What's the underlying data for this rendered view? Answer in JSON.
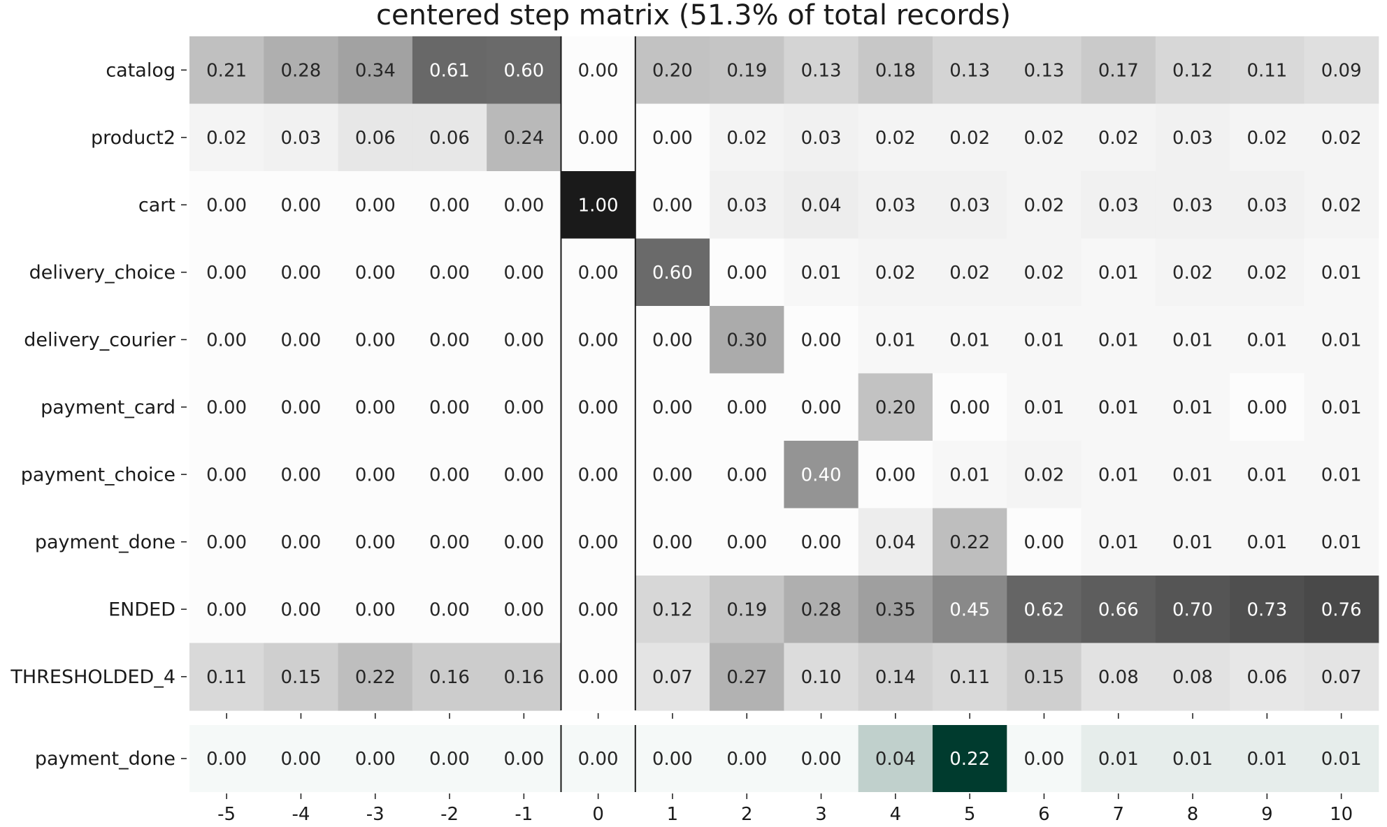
{
  "chart_data": {
    "type": "heatmap",
    "title": "centered step matrix (51.3% of total records)",
    "x_ticks": [
      "-5",
      "-4",
      "-3",
      "-2",
      "-1",
      "0",
      "1",
      "2",
      "3",
      "4",
      "5",
      "6",
      "7",
      "8",
      "9",
      "10"
    ],
    "rows": [
      "catalog",
      "product2",
      "cart",
      "delivery_choice",
      "delivery_courier",
      "payment_card",
      "payment_choice",
      "payment_done",
      "ENDED",
      "THRESHOLDED_4"
    ],
    "values": [
      [
        "0.21",
        "0.28",
        "0.34",
        "0.61",
        "0.60",
        "0.00",
        "0.20",
        "0.19",
        "0.13",
        "0.18",
        "0.13",
        "0.13",
        "0.17",
        "0.12",
        "0.11",
        "0.09"
      ],
      [
        "0.02",
        "0.03",
        "0.06",
        "0.06",
        "0.24",
        "0.00",
        "0.00",
        "0.02",
        "0.03",
        "0.02",
        "0.02",
        "0.02",
        "0.02",
        "0.03",
        "0.02",
        "0.02"
      ],
      [
        "0.00",
        "0.00",
        "0.00",
        "0.00",
        "0.00",
        "1.00",
        "0.00",
        "0.03",
        "0.04",
        "0.03",
        "0.03",
        "0.02",
        "0.03",
        "0.03",
        "0.03",
        "0.02"
      ],
      [
        "0.00",
        "0.00",
        "0.00",
        "0.00",
        "0.00",
        "0.00",
        "0.60",
        "0.00",
        "0.01",
        "0.02",
        "0.02",
        "0.02",
        "0.01",
        "0.02",
        "0.02",
        "0.01"
      ],
      [
        "0.00",
        "0.00",
        "0.00",
        "0.00",
        "0.00",
        "0.00",
        "0.00",
        "0.30",
        "0.00",
        "0.01",
        "0.01",
        "0.01",
        "0.01",
        "0.01",
        "0.01",
        "0.01"
      ],
      [
        "0.00",
        "0.00",
        "0.00",
        "0.00",
        "0.00",
        "0.00",
        "0.00",
        "0.00",
        "0.00",
        "0.20",
        "0.00",
        "0.01",
        "0.01",
        "0.01",
        "0.00",
        "0.01"
      ],
      [
        "0.00",
        "0.00",
        "0.00",
        "0.00",
        "0.00",
        "0.00",
        "0.00",
        "0.00",
        "0.40",
        "0.00",
        "0.01",
        "0.02",
        "0.01",
        "0.01",
        "0.01",
        "0.01"
      ],
      [
        "0.00",
        "0.00",
        "0.00",
        "0.00",
        "0.00",
        "0.00",
        "0.00",
        "0.00",
        "0.00",
        "0.04",
        "0.22",
        "0.00",
        "0.01",
        "0.01",
        "0.01",
        "0.01"
      ],
      [
        "0.00",
        "0.00",
        "0.00",
        "0.00",
        "0.00",
        "0.00",
        "0.12",
        "0.19",
        "0.28",
        "0.35",
        "0.45",
        "0.62",
        "0.66",
        "0.70",
        "0.73",
        "0.76"
      ],
      [
        "0.11",
        "0.15",
        "0.22",
        "0.16",
        "0.16",
        "0.00",
        "0.07",
        "0.27",
        "0.10",
        "0.14",
        "0.11",
        "0.15",
        "0.08",
        "0.08",
        "0.06",
        "0.07"
      ]
    ],
    "target_row": {
      "label": "payment_done",
      "values": [
        "0.00",
        "0.00",
        "0.00",
        "0.00",
        "0.00",
        "0.00",
        "0.00",
        "0.00",
        "0.00",
        "0.04",
        "0.22",
        "0.00",
        "0.01",
        "0.01",
        "0.01",
        "0.01"
      ]
    },
    "colormap": "greys",
    "target_colormap": "teal",
    "vertical_rules_after_columns": [
      "-1",
      "0"
    ],
    "colors": {
      "grey_high": "#1a1a1a",
      "grey_low": "#fcfcfc",
      "teal_high": "#003b2e",
      "teal_low": "#f5f9f8",
      "text_dark": "#262626",
      "text_light": "#ffffff"
    }
  }
}
